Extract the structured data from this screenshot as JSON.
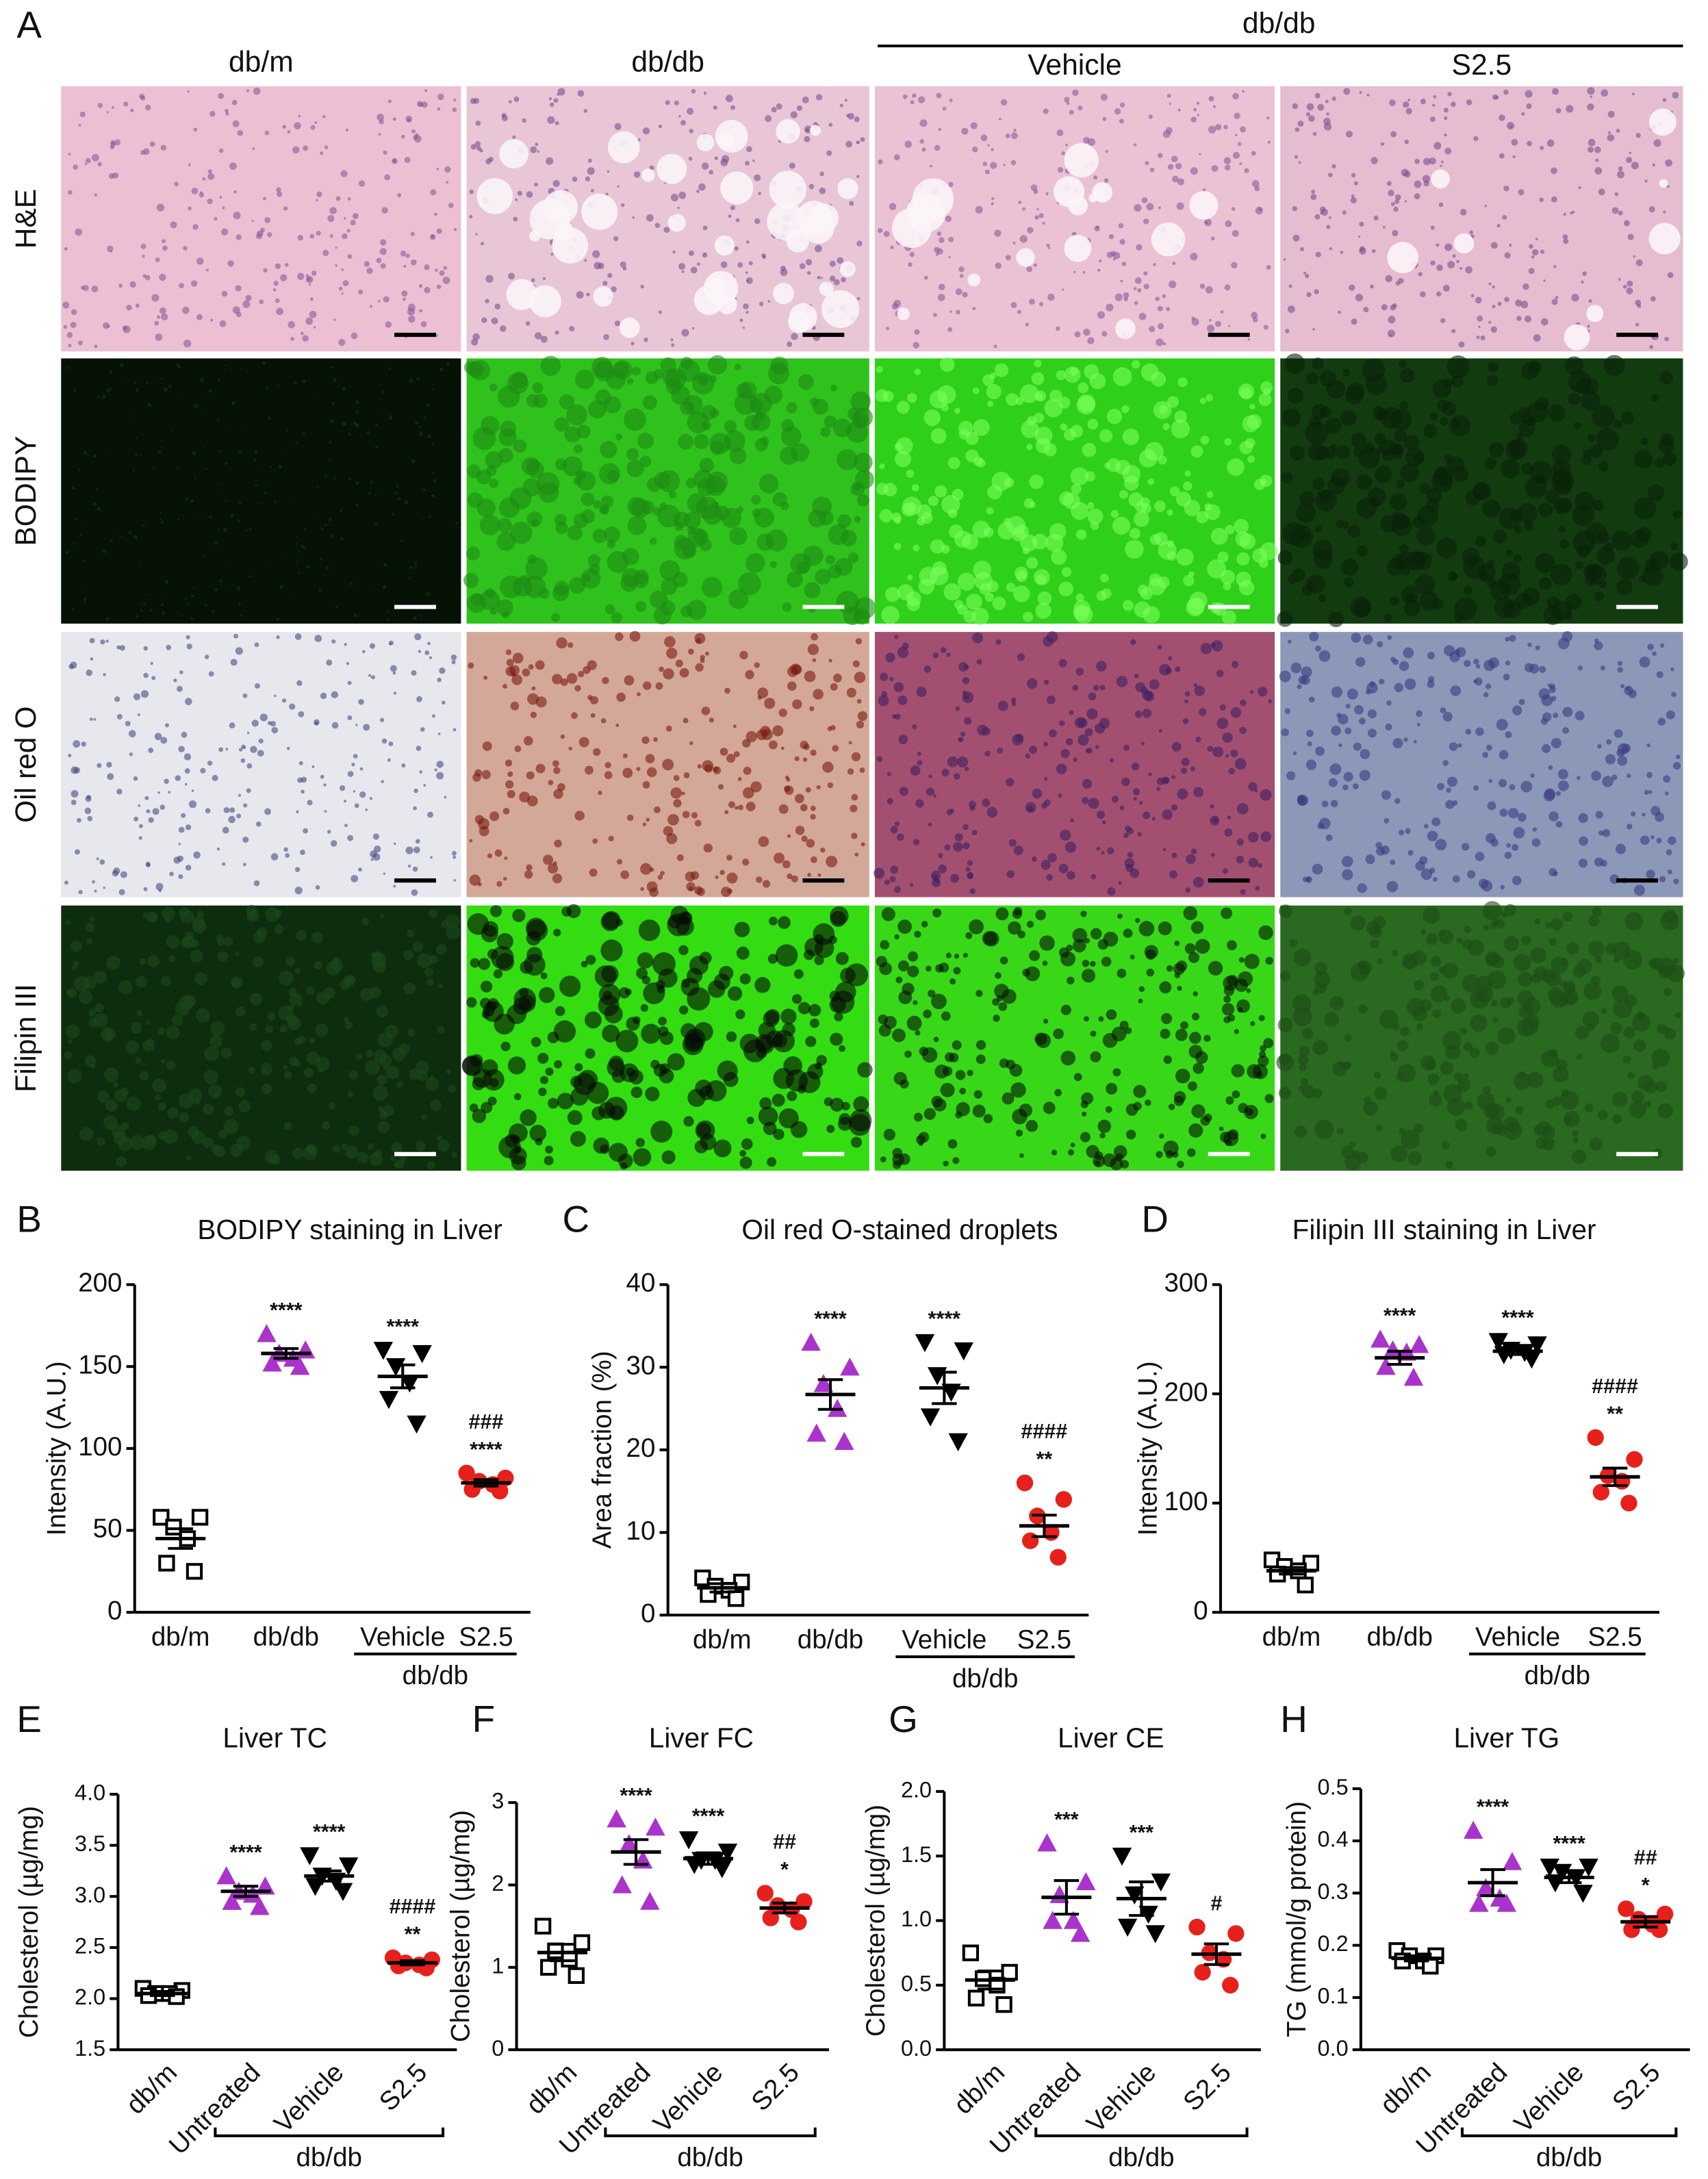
{
  "panel_a": {
    "letter": "A",
    "group_header": "db/db",
    "columns": [
      "db/m",
      "db/db",
      "Vehicle",
      "S2.5"
    ],
    "rows": [
      "H&E",
      "BODIPY",
      "Oil red O",
      "Filipin III"
    ]
  },
  "chart_data": [
    {
      "type": "dot",
      "panel": "B",
      "title": "BODIPY staining in Liver",
      "ylabel": "Intensity (A.U.)",
      "categories": [
        "db/m",
        "db/db",
        "Vehicle",
        "S2.5"
      ],
      "group_label": "db/db",
      "ylim": [
        0,
        200
      ],
      "yticks": [
        0,
        50,
        100,
        150,
        200
      ],
      "groups": [
        {
          "marker": "square-open",
          "color": "#000000",
          "points": [
            58,
            58,
            52,
            45,
            30,
            25
          ],
          "mean": 45,
          "sem": 6,
          "annotations": []
        },
        {
          "marker": "triangle",
          "color": "#aa33cc",
          "points": [
            170,
            160,
            158,
            155,
            152,
            150
          ],
          "mean": 158,
          "sem": 3,
          "annotations": [
            "****"
          ]
        },
        {
          "marker": "triangle-down",
          "color": "#000000",
          "points": [
            160,
            158,
            150,
            140,
            130,
            115
          ],
          "mean": 144,
          "sem": 7,
          "annotations": [
            "****"
          ]
        },
        {
          "marker": "circle",
          "color": "#e8201c",
          "points": [
            85,
            82,
            80,
            78,
            75,
            74
          ],
          "mean": 79,
          "sem": 2,
          "annotations": [
            "###",
            "****"
          ]
        }
      ]
    },
    {
      "type": "dot",
      "panel": "C",
      "title": "Oil red O-stained droplets",
      "ylabel": "Area fraction (%)",
      "categories": [
        "db/m",
        "db/db",
        "Vehicle",
        "S2.5"
      ],
      "group_label": "db/db",
      "ylim": [
        0,
        40
      ],
      "yticks": [
        0,
        10,
        20,
        30,
        40
      ],
      "groups": [
        {
          "marker": "square-open",
          "color": "#000000",
          "points": [
            4.5,
            4,
            3.5,
            3,
            2.5,
            2
          ],
          "mean": 3.3,
          "sem": 0.5,
          "annotations": []
        },
        {
          "marker": "triangle",
          "color": "#aa33cc",
          "points": [
            33,
            30,
            28,
            25,
            22,
            21
          ],
          "mean": 26.7,
          "sem": 1.8,
          "annotations": [
            "****"
          ]
        },
        {
          "marker": "triangle-down",
          "color": "#000000",
          "points": [
            33,
            32,
            29,
            27,
            24,
            21
          ],
          "mean": 27.5,
          "sem": 1.9,
          "annotations": [
            "****"
          ]
        },
        {
          "marker": "circle",
          "color": "#e8201c",
          "points": [
            16,
            14,
            12,
            10,
            9,
            7
          ],
          "mean": 10.8,
          "sem": 1.3,
          "annotations": [
            "####",
            "**"
          ]
        }
      ]
    },
    {
      "type": "dot",
      "panel": "D",
      "title": "Filipin III staining in Liver",
      "ylabel": "Intensity (A.U.)",
      "categories": [
        "db/m",
        "db/db",
        "Vehicle",
        "S2.5"
      ],
      "group_label": "db/db",
      "ylim": [
        0,
        300
      ],
      "yticks": [
        0,
        100,
        200,
        300
      ],
      "groups": [
        {
          "marker": "square-open",
          "color": "#000000",
          "points": [
            48,
            45,
            42,
            38,
            35,
            25
          ],
          "mean": 38,
          "sem": 3,
          "annotations": []
        },
        {
          "marker": "triangle",
          "color": "#aa33cc",
          "points": [
            250,
            245,
            240,
            238,
            225,
            215
          ],
          "mean": 233,
          "sem": 6,
          "annotations": [
            "****"
          ]
        },
        {
          "marker": "triangle-down",
          "color": "#000000",
          "points": [
            248,
            245,
            240,
            238,
            236,
            232
          ],
          "mean": 239,
          "sem": 3,
          "annotations": [
            "****"
          ]
        },
        {
          "marker": "circle",
          "color": "#e8201c",
          "points": [
            160,
            140,
            125,
            120,
            110,
            100
          ],
          "mean": 124,
          "sem": 8,
          "annotations": [
            "####",
            "**"
          ]
        }
      ]
    },
    {
      "type": "dot",
      "panel": "E",
      "title": "Liver TC",
      "ylabel": "Cholesterol (µg/mg)",
      "categories": [
        "db/m",
        "Untreated",
        "Vehicle",
        "S2.5"
      ],
      "group_label": "db/db",
      "ylim": [
        1.5,
        4
      ],
      "yticks": [
        1.5,
        {
          "value": 2,
          "label": "2.0"
        },
        2.5,
        {
          "value": 3,
          "label": "3.0"
        },
        3.5,
        {
          "value": 4,
          "label": "4.0"
        }
      ],
      "groups": [
        {
          "marker": "square-open",
          "color": "#000000",
          "points": [
            2.1,
            2.08,
            2.05,
            2.05,
            2.03,
            2.02
          ],
          "mean": 2.05,
          "sem": 0.02,
          "annotations": []
        },
        {
          "marker": "triangle",
          "color": "#aa33cc",
          "points": [
            3.2,
            3.1,
            3.05,
            3.02,
            2.95,
            2.9
          ],
          "mean": 3.05,
          "sem": 0.05,
          "annotations": [
            "****"
          ]
        },
        {
          "marker": "triangle-down",
          "color": "#000000",
          "points": [
            3.4,
            3.3,
            3.2,
            3.15,
            3.1,
            3.05
          ],
          "mean": 3.2,
          "sem": 0.05,
          "annotations": [
            "****"
          ]
        },
        {
          "marker": "circle",
          "color": "#e8201c",
          "points": [
            2.4,
            2.38,
            2.35,
            2.33,
            2.32,
            2.3
          ],
          "mean": 2.35,
          "sem": 0.02,
          "annotations": [
            "####",
            "**"
          ]
        }
      ]
    },
    {
      "type": "dot",
      "panel": "F",
      "title": "Liver FC",
      "ylabel": "Cholesterol (µg/mg)",
      "categories": [
        "db/m",
        "Untreated",
        "Vehicle",
        "S2.5"
      ],
      "group_label": "db/db",
      "ylim": [
        0,
        3
      ],
      "yticks": [
        0,
        1,
        2,
        3
      ],
      "groups": [
        {
          "marker": "square-open",
          "color": "#000000",
          "points": [
            1.5,
            1.3,
            1.2,
            1.1,
            1.0,
            0.9
          ],
          "mean": 1.18,
          "sem": 0.1,
          "annotations": []
        },
        {
          "marker": "triangle",
          "color": "#aa33cc",
          "points": [
            2.8,
            2.7,
            2.5,
            2.3,
            2.0,
            1.8
          ],
          "mean": 2.4,
          "sem": 0.15,
          "annotations": [
            "****"
          ]
        },
        {
          "marker": "triangle-down",
          "color": "#000000",
          "points": [
            2.55,
            2.4,
            2.3,
            2.3,
            2.25,
            2.2
          ],
          "mean": 2.32,
          "sem": 0.07,
          "annotations": [
            "****"
          ]
        },
        {
          "marker": "circle",
          "color": "#e8201c",
          "points": [
            1.9,
            1.8,
            1.75,
            1.7,
            1.6,
            1.55
          ],
          "mean": 1.72,
          "sem": 0.06,
          "annotations": [
            "##",
            "*"
          ]
        }
      ]
    },
    {
      "type": "dot",
      "panel": "G",
      "title": "Liver CE",
      "ylabel": "Cholesterol (µg/mg)",
      "categories": [
        "db/m",
        "Untreated",
        "Vehicle",
        "S2.5"
      ],
      "group_label": "db/db",
      "ylim": [
        0,
        2
      ],
      "yticks": [
        {
          "value": 0,
          "label": "0.0"
        },
        0.5,
        {
          "value": 1,
          "label": "1.0"
        },
        1.5,
        {
          "value": 2,
          "label": "2.0"
        }
      ],
      "groups": [
        {
          "marker": "square-open",
          "color": "#000000",
          "points": [
            0.75,
            0.6,
            0.55,
            0.5,
            0.4,
            0.35
          ],
          "mean": 0.54,
          "sem": 0.07,
          "annotations": []
        },
        {
          "marker": "triangle",
          "color": "#aa33cc",
          "points": [
            1.6,
            1.3,
            1.2,
            1.0,
            1.0,
            0.9
          ],
          "mean": 1.18,
          "sem": 0.13,
          "annotations": [
            "***"
          ]
        },
        {
          "marker": "triangle-down",
          "color": "#000000",
          "points": [
            1.5,
            1.3,
            1.2,
            1.05,
            0.95,
            0.9
          ],
          "mean": 1.17,
          "sem": 0.13,
          "annotations": [
            "***"
          ]
        },
        {
          "marker": "circle",
          "color": "#e8201c",
          "points": [
            0.95,
            0.9,
            0.75,
            0.7,
            0.6,
            0.5
          ],
          "mean": 0.74,
          "sem": 0.08,
          "annotations": [
            "#"
          ]
        }
      ]
    },
    {
      "type": "dot",
      "panel": "H",
      "title": "Liver TG",
      "ylabel": "TG (mmol/g protein)",
      "categories": [
        "db/m",
        "Untreated",
        "Vehicle",
        "S2.5"
      ],
      "group_label": "db/db",
      "ylim": [
        0,
        0.5
      ],
      "yticks": [
        {
          "value": 0,
          "label": "0.0"
        },
        0.1,
        0.2,
        0.3,
        0.4,
        0.5
      ],
      "groups": [
        {
          "marker": "square-open",
          "color": "#000000",
          "points": [
            0.19,
            0.18,
            0.18,
            0.17,
            0.17,
            0.16
          ],
          "mean": 0.175,
          "sem": 0.005,
          "annotations": []
        },
        {
          "marker": "triangle",
          "color": "#aa33cc",
          "points": [
            0.42,
            0.36,
            0.31,
            0.29,
            0.28,
            0.28
          ],
          "mean": 0.32,
          "sem": 0.025,
          "annotations": [
            "****"
          ]
        },
        {
          "marker": "triangle-down",
          "color": "#000000",
          "points": [
            0.35,
            0.35,
            0.34,
            0.33,
            0.32,
            0.3
          ],
          "mean": 0.33,
          "sem": 0.01,
          "annotations": [
            "****"
          ]
        },
        {
          "marker": "circle",
          "color": "#e8201c",
          "points": [
            0.27,
            0.26,
            0.25,
            0.24,
            0.23,
            0.23
          ],
          "mean": 0.245,
          "sem": 0.01,
          "annotations": [
            "##",
            "*"
          ]
        }
      ]
    }
  ]
}
